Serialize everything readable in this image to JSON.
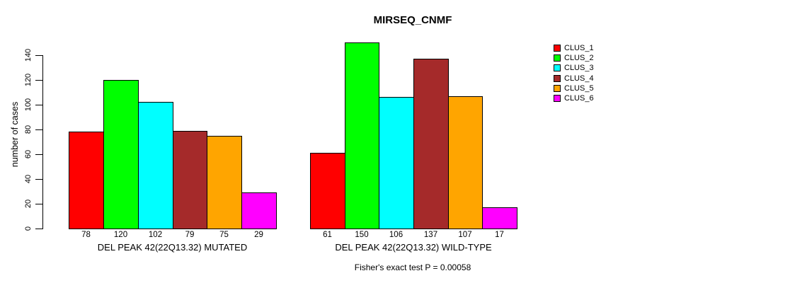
{
  "chart_data": {
    "type": "bar",
    "title": "MIRSEQ_CNMF",
    "ylabel": "number of cases",
    "xlabel": "",
    "footer": "Fisher's exact test P = 0.00058",
    "yticks": [
      0,
      20,
      40,
      60,
      80,
      100,
      120,
      140
    ],
    "ylim": [
      0,
      150
    ],
    "grid": false,
    "legend_position": "right",
    "bar_value_labels_shown": true,
    "categories": [
      "CLUS_1",
      "CLUS_2",
      "CLUS_3",
      "CLUS_4",
      "CLUS_5",
      "CLUS_6"
    ],
    "series_colors": [
      "#FF0000",
      "#00FF00",
      "#00FFFF",
      "#A52A2A",
      "#FFA500",
      "#FF00FF"
    ],
    "groups": [
      {
        "label": "DEL PEAK 42(22Q13.32) MUTATED",
        "values": [
          78,
          120,
          102,
          79,
          75,
          29
        ]
      },
      {
        "label": "DEL PEAK 42(22Q13.32) WILD-TYPE",
        "values": [
          61,
          150,
          106,
          137,
          107,
          17
        ]
      }
    ],
    "legend": [
      {
        "label": "CLUS_1",
        "color": "#FF0000"
      },
      {
        "label": "CLUS_2",
        "color": "#00FF00"
      },
      {
        "label": "CLUS_3",
        "color": "#00FFFF"
      },
      {
        "label": "CLUS_4",
        "color": "#A52A2A"
      },
      {
        "label": "CLUS_5",
        "color": "#FFA500"
      },
      {
        "label": "CLUS_6",
        "color": "#FF00FF"
      }
    ]
  }
}
